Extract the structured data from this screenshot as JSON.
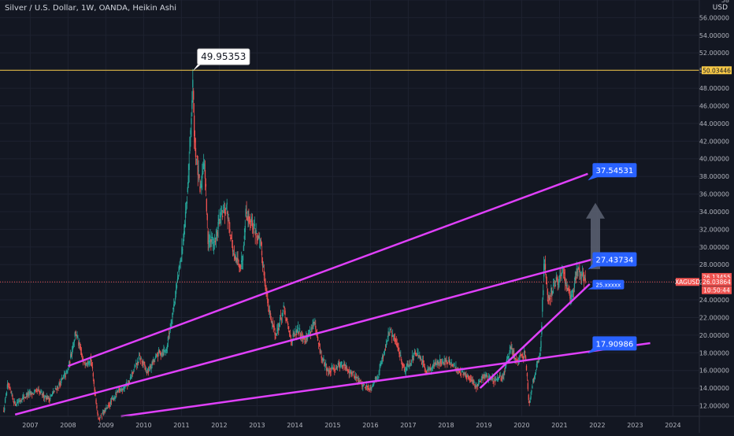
{
  "header": {
    "title": "Silver / U.S. Dollar, 1W, OANDA, Heikin Ashi",
    "currency": "USD"
  },
  "colors": {
    "background": "#131722",
    "grid": "#1e2230",
    "axis_text": "#b2b5be",
    "up": "#26a69a",
    "down": "#ef5350",
    "trendline": "#e040fb",
    "label_blue": "#2962ff",
    "peak_line": "#f7c948",
    "arrow": "#5d6373"
  },
  "chart_data": {
    "type": "candlestick",
    "title": "Silver / U.S. Dollar, 1W, OANDA, Heikin Ashi",
    "xlim": [
      2006.2,
      2024.7
    ],
    "ylim": [
      10.8,
      58
    ],
    "x_ticks": [
      "2007",
      "2008",
      "2009",
      "2010",
      "2011",
      "2012",
      "2013",
      "2014",
      "2015",
      "2016",
      "2017",
      "2018",
      "2019",
      "2020",
      "2021",
      "2022",
      "2023",
      "2024"
    ],
    "y_ticks": [
      "12.00000",
      "14.00000",
      "16.00000",
      "18.00000",
      "20.00000",
      "22.00000",
      "24.00000",
      "26.00000",
      "28.00000",
      "30.00000",
      "32.00000",
      "34.00000",
      "36.00000",
      "38.00000",
      "40.00000",
      "42.00000",
      "44.00000",
      "46.00000",
      "48.00000",
      "50.00000",
      "52.00000",
      "54.00000",
      "56.00000",
      "58"
    ],
    "price_path": [
      [
        2006.3,
        11.5
      ],
      [
        2006.4,
        14.3
      ],
      [
        2006.6,
        12.2
      ],
      [
        2006.9,
        13.2
      ],
      [
        2007.2,
        13.6
      ],
      [
        2007.5,
        12.8
      ],
      [
        2007.8,
        14.6
      ],
      [
        2008.0,
        16.0
      ],
      [
        2008.2,
        20.5
      ],
      [
        2008.4,
        16.8
      ],
      [
        2008.6,
        17.5
      ],
      [
        2008.8,
        10.5
      ],
      [
        2009.0,
        11.5
      ],
      [
        2009.3,
        13.5
      ],
      [
        2009.6,
        14.6
      ],
      [
        2009.9,
        17.5
      ],
      [
        2010.1,
        15.8
      ],
      [
        2010.4,
        18.0
      ],
      [
        2010.6,
        18.3
      ],
      [
        2010.8,
        23.5
      ],
      [
        2011.0,
        29.0
      ],
      [
        2011.15,
        35.0
      ],
      [
        2011.3,
        48.5
      ],
      [
        2011.35,
        42.0
      ],
      [
        2011.5,
        36.0
      ],
      [
        2011.6,
        40.5
      ],
      [
        2011.7,
        31.0
      ],
      [
        2011.9,
        30.5
      ],
      [
        2012.0,
        33.0
      ],
      [
        2012.2,
        34.5
      ],
      [
        2012.4,
        28.5
      ],
      [
        2012.6,
        28.0
      ],
      [
        2012.7,
        34.0
      ],
      [
        2012.9,
        32.5
      ],
      [
        2013.1,
        30.0
      ],
      [
        2013.3,
        23.0
      ],
      [
        2013.5,
        20.0
      ],
      [
        2013.7,
        23.0
      ],
      [
        2013.9,
        19.5
      ],
      [
        2014.1,
        20.5
      ],
      [
        2014.3,
        19.5
      ],
      [
        2014.5,
        21.5
      ],
      [
        2014.7,
        17.5
      ],
      [
        2014.9,
        15.8
      ],
      [
        2015.2,
        16.8
      ],
      [
        2015.5,
        15.8
      ],
      [
        2015.8,
        14.3
      ],
      [
        2016.0,
        14.0
      ],
      [
        2016.2,
        15.5
      ],
      [
        2016.5,
        20.5
      ],
      [
        2016.7,
        19.0
      ],
      [
        2016.9,
        16.0
      ],
      [
        2017.2,
        18.0
      ],
      [
        2017.5,
        16.0
      ],
      [
        2017.8,
        17.0
      ],
      [
        2018.0,
        17.0
      ],
      [
        2018.2,
        16.5
      ],
      [
        2018.5,
        15.5
      ],
      [
        2018.8,
        14.2
      ],
      [
        2019.0,
        15.5
      ],
      [
        2019.3,
        14.8
      ],
      [
        2019.5,
        15.2
      ],
      [
        2019.7,
        18.5
      ],
      [
        2019.9,
        17.0
      ],
      [
        2020.1,
        18.0
      ],
      [
        2020.2,
        12.0
      ],
      [
        2020.3,
        15.0
      ],
      [
        2020.5,
        18.0
      ],
      [
        2020.6,
        29.0
      ],
      [
        2020.7,
        24.0
      ],
      [
        2020.9,
        26.0
      ],
      [
        2021.1,
        27.0
      ],
      [
        2021.3,
        24.0
      ],
      [
        2021.5,
        28.0
      ],
      [
        2021.7,
        26.0
      ]
    ],
    "trendlines": [
      {
        "name": "upper-channel",
        "points": [
          [
            2008.0,
            16.5
          ],
          [
            2021.75,
            38.3
          ]
        ]
      },
      {
        "name": "middle-channel",
        "points": [
          [
            2006.6,
            11.0
          ],
          [
            2022.4,
            29.2
          ]
        ]
      },
      {
        "name": "lower-channel",
        "points": [
          [
            2009.4,
            10.8
          ],
          [
            2023.4,
            19.1
          ]
        ]
      },
      {
        "name": "rising-support",
        "points": [
          [
            2018.9,
            14.0
          ],
          [
            2021.8,
            25.8
          ]
        ]
      }
    ],
    "horizontal_lines": [
      {
        "name": "peak-line",
        "y": 50.03446
      },
      {
        "name": "current-price-line",
        "y": 26.03864
      }
    ],
    "annotations": [
      {
        "name": "peak-callout",
        "text": "49.95353",
        "x": 2011.3,
        "y": 49.95353
      },
      {
        "name": "upper-target-label",
        "text": "37.54531",
        "x": 2021.75,
        "y": 37.54531
      },
      {
        "name": "middle-target-label",
        "text": "27.43734",
        "x": 2021.75,
        "y": 27.43734
      },
      {
        "name": "small-target-label",
        "text": "25.xxxxx",
        "x": 2021.75,
        "y": 25.2
      },
      {
        "name": "lower-target-label",
        "text": "17.90986",
        "x": 2021.75,
        "y": 17.90986
      }
    ],
    "price_axis_labels": [
      {
        "name": "peak-price-tag",
        "text": "50.03446",
        "y": 50.03446,
        "style": "light"
      },
      {
        "name": "symbol-tag",
        "text": "XAGUSD",
        "y": 26.03864,
        "style": "red"
      },
      {
        "name": "upper-price-tag",
        "text": "26.13455",
        "y": 26.6,
        "style": "red"
      },
      {
        "name": "current-price-tag",
        "text": "26.03864",
        "y": 26.03864,
        "style": "red"
      },
      {
        "name": "countdown-tag",
        "text": "10:50:44",
        "y": 25.1,
        "style": "red"
      }
    ],
    "arrow": {
      "x": 2021.95,
      "y_from": 27.5,
      "y_to": 35.0
    }
  }
}
